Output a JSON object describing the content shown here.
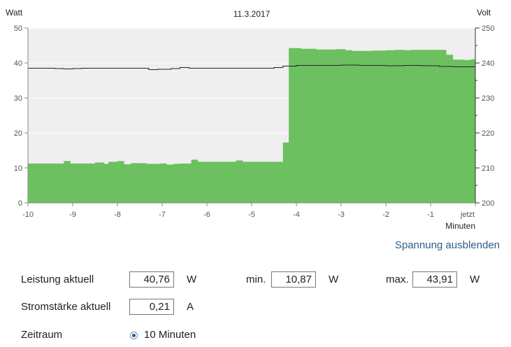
{
  "chart_data": {
    "type": "area",
    "title": "11.3.2017",
    "ylabel": "Watt",
    "ylabel_right": "Volt",
    "xlabel": "Minuten",
    "xlim": [
      -10,
      0
    ],
    "ylim": [
      0,
      50
    ],
    "ylim_right": [
      200,
      250
    ],
    "x_ticks": [
      -10,
      -9,
      -8,
      -7,
      -6,
      -5,
      -4,
      -3,
      -2,
      -1,
      0
    ],
    "x_tick_labels": [
      "-10",
      "-9",
      "-8",
      "-7",
      "-6",
      "-5",
      "-4",
      "-3",
      "-2",
      "-1",
      "jetzt"
    ],
    "y_ticks": [
      0,
      10,
      20,
      30,
      40,
      50
    ],
    "y_ticks_right": [
      200,
      210,
      220,
      230,
      240,
      250
    ],
    "grid": "horizontal",
    "colors": {
      "power": "#6cc05f",
      "voltage": "#222222",
      "plot_bg": "#efefef"
    },
    "series": [
      {
        "axis": "left",
        "points": [
          [
            -10.0,
            11.2
          ],
          [
            -9.7,
            11.2
          ],
          [
            -9.35,
            11.2
          ],
          [
            -9.2,
            11.9
          ],
          [
            -9.05,
            11.2
          ],
          [
            -8.7,
            11.2
          ],
          [
            -8.5,
            11.5
          ],
          [
            -8.3,
            11.1
          ],
          [
            -8.2,
            11.7
          ],
          [
            -8.0,
            11.9
          ],
          [
            -7.85,
            11.0
          ],
          [
            -7.7,
            11.3
          ],
          [
            -7.5,
            11.3
          ],
          [
            -7.35,
            11.1
          ],
          [
            -7.2,
            11.1
          ],
          [
            -7.05,
            11.2
          ],
          [
            -6.9,
            10.9
          ],
          [
            -6.75,
            11.1
          ],
          [
            -6.6,
            11.2
          ],
          [
            -6.35,
            12.3
          ],
          [
            -6.2,
            11.7
          ],
          [
            -6.0,
            11.7
          ],
          [
            -5.8,
            11.7
          ],
          [
            -5.5,
            11.7
          ],
          [
            -5.35,
            12.1
          ],
          [
            -5.2,
            11.7
          ],
          [
            -5.0,
            11.7
          ],
          [
            -4.5,
            11.7
          ],
          [
            -4.3,
            17.2
          ],
          [
            -4.17,
            44.2
          ],
          [
            -3.9,
            44.0
          ],
          [
            -3.55,
            43.8
          ],
          [
            -3.3,
            43.8
          ],
          [
            -3.1,
            43.9
          ],
          [
            -2.9,
            43.6
          ],
          [
            -2.75,
            43.4
          ],
          [
            -2.55,
            43.4
          ],
          [
            -2.3,
            43.5
          ],
          [
            -2.0,
            43.6
          ],
          [
            -1.8,
            43.7
          ],
          [
            -1.6,
            43.6
          ],
          [
            -1.45,
            43.7
          ],
          [
            -1.2,
            43.7
          ],
          [
            -0.9,
            43.7
          ],
          [
            -0.65,
            42.3
          ],
          [
            -0.5,
            40.9
          ],
          [
            -0.25,
            40.8
          ],
          [
            -0.1,
            41.0
          ]
        ]
      },
      {
        "axis": "right",
        "points": [
          [
            -10.0,
            238.5
          ],
          [
            -9.4,
            238.4
          ],
          [
            -9.2,
            238.3
          ],
          [
            -9.0,
            238.4
          ],
          [
            -8.8,
            238.5
          ],
          [
            -8.0,
            238.5
          ],
          [
            -7.3,
            238.1
          ],
          [
            -7.1,
            238.2
          ],
          [
            -6.8,
            238.4
          ],
          [
            -6.6,
            238.7
          ],
          [
            -6.4,
            238.5
          ],
          [
            -5.7,
            238.5
          ],
          [
            -5.4,
            238.5
          ],
          [
            -5.0,
            238.5
          ],
          [
            -4.5,
            238.7
          ],
          [
            -4.3,
            239.1
          ],
          [
            -4.0,
            239.3
          ],
          [
            -3.5,
            239.3
          ],
          [
            -3.0,
            239.4
          ],
          [
            -2.6,
            239.3
          ],
          [
            -2.4,
            239.3
          ],
          [
            -2.0,
            239.2
          ],
          [
            -1.6,
            239.3
          ],
          [
            -1.2,
            239.2
          ],
          [
            -0.8,
            239.0
          ],
          [
            -0.5,
            238.9
          ],
          [
            0.0,
            238.9
          ]
        ]
      }
    ]
  },
  "controls": {
    "toggle_voltage_label": "Spannung ausblenden",
    "power_label": "Leistung aktuell",
    "power_value": "40,76",
    "power_unit": "W",
    "min_label": "min.",
    "min_value": "10,87",
    "min_unit": "W",
    "max_label": "max.",
    "max_value": "43,91",
    "max_unit": "W",
    "current_label": "Stromstärke aktuell",
    "current_value": "0,21",
    "current_unit": "A",
    "period_label": "Zeitraum",
    "period_option": "10 Minuten"
  }
}
